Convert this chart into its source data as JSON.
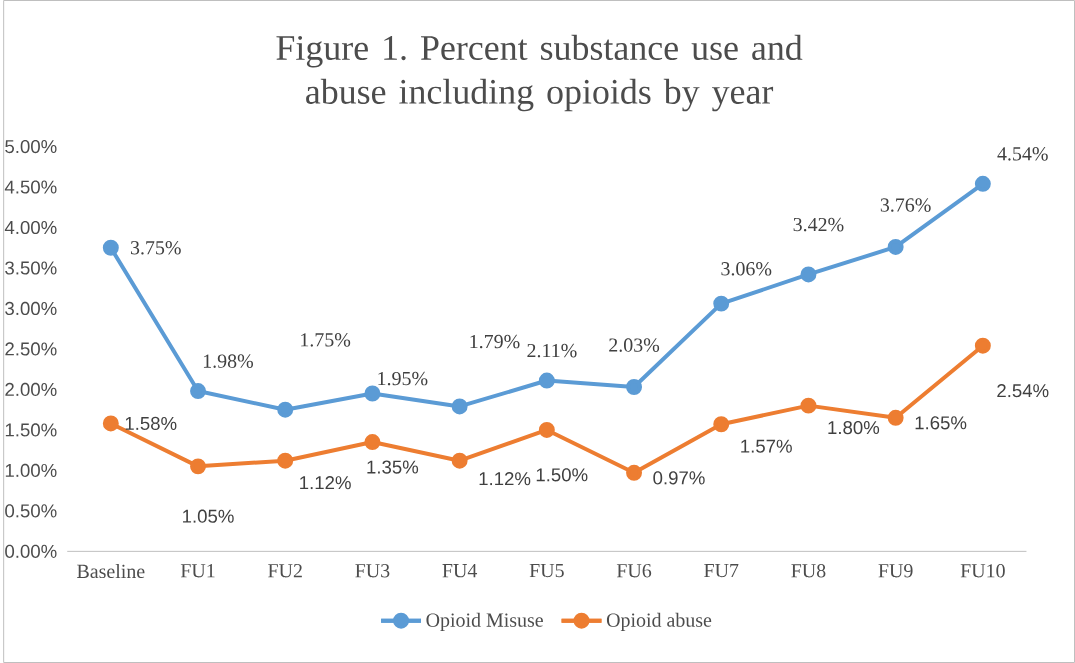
{
  "chart_data": {
    "type": "line",
    "title": "Figure 1. Percent substance use and abuse including opioids by year",
    "categories": [
      "Baseline",
      "FU1",
      "FU2",
      "FU3",
      "FU4",
      "FU5",
      "FU6",
      "FU7",
      "FU8",
      "FU9",
      "FU10"
    ],
    "series": [
      {
        "name": "Opioid Misuse",
        "color": "#5b9bd5",
        "values": [
          3.75,
          1.98,
          1.75,
          1.95,
          1.79,
          2.11,
          2.03,
          3.06,
          3.42,
          3.76,
          4.54
        ],
        "value_labels": [
          "3.75%",
          "1.98%",
          "1.75%",
          "1.95%",
          "1.79%",
          "2.11%",
          "2.03%",
          "3.06%",
          "3.42%",
          "3.76%",
          "4.54%"
        ]
      },
      {
        "name": "Opioid abuse",
        "color": "#ed7d31",
        "values": [
          1.58,
          1.05,
          1.12,
          1.35,
          1.12,
          1.5,
          0.97,
          1.57,
          1.8,
          1.65,
          2.54
        ],
        "value_labels": [
          "1.58%",
          "1.05%",
          "1.12%",
          "1.35%",
          "1.12%",
          "1.50%",
          "0.97%",
          "1.57%",
          "1.80%",
          "1.65%",
          "2.54%"
        ]
      }
    ],
    "ylim": [
      0,
      5
    ],
    "yticks": [
      {
        "value": 0,
        "label": "0.00%"
      },
      {
        "value": 0.5,
        "label": "0.50%"
      },
      {
        "value": 1,
        "label": "1.00%"
      },
      {
        "value": 1.5,
        "label": "1.50%"
      },
      {
        "value": 2,
        "label": "2.00%"
      },
      {
        "value": 2.5,
        "label": "2.50%"
      },
      {
        "value": 3,
        "label": "3.00%"
      },
      {
        "value": 3.5,
        "label": "3.50%"
      },
      {
        "value": 4,
        "label": "4.00%"
      },
      {
        "value": 4.5,
        "label": "4.50%"
      },
      {
        "value": 5,
        "label": "5.00%"
      }
    ],
    "grid": false,
    "legend": "bottom",
    "marker": "circle",
    "line_style": "solid"
  }
}
